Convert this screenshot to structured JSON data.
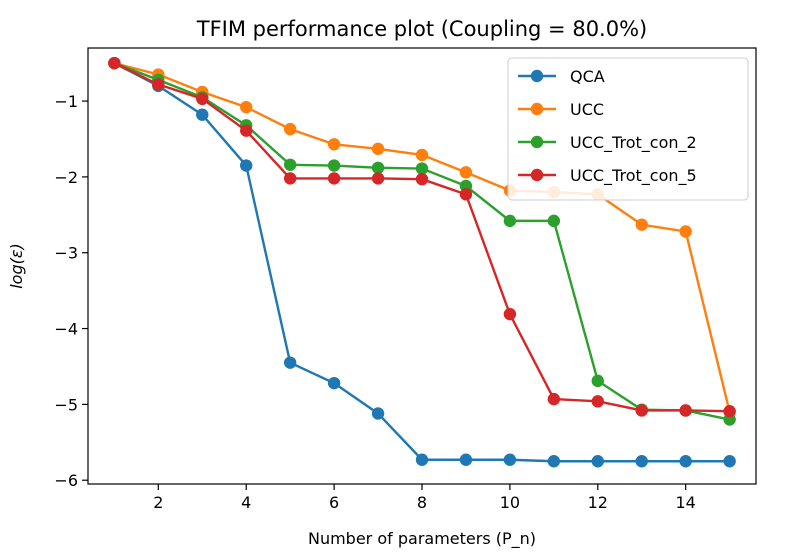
{
  "chart_data": {
    "type": "line",
    "title": "TFIM performance plot (Coupling = 80.0%)",
    "xlabel": "Number of parameters (P_n)",
    "ylabel": "log(ε)",
    "xlim": [
      0.4,
      15.6
    ],
    "ylim": [
      -6.05,
      -0.3
    ],
    "xticks": [
      2,
      4,
      6,
      8,
      10,
      12,
      14
    ],
    "yticks": [
      -1,
      -2,
      -3,
      -4,
      -5,
      -6
    ],
    "grid": false,
    "legend_position": "top-right",
    "x": [
      1,
      2,
      3,
      4,
      5,
      6,
      7,
      8,
      9,
      10,
      11,
      12,
      13,
      14,
      15
    ],
    "series": [
      {
        "name": "QCA",
        "color": "#1f77b4",
        "values": [
          -0.5,
          -0.8,
          -1.18,
          -1.85,
          -4.45,
          -4.72,
          -5.12,
          -5.73,
          -5.73,
          -5.73,
          -5.75,
          -5.75,
          -5.75,
          -5.75,
          -5.75
        ]
      },
      {
        "name": "UCC",
        "color": "#ff7f0e",
        "values": [
          -0.5,
          -0.65,
          -0.88,
          -1.08,
          -1.37,
          -1.57,
          -1.63,
          -1.71,
          -1.94,
          -2.18,
          -2.2,
          -2.23,
          -2.63,
          -2.72,
          -5.1
        ]
      },
      {
        "name": "UCC_Trot_con_2",
        "color": "#2ca02c",
        "values": [
          -0.5,
          -0.72,
          -0.95,
          -1.32,
          -1.84,
          -1.85,
          -1.88,
          -1.89,
          -2.12,
          -2.58,
          -2.58,
          -4.69,
          -5.07,
          -5.08,
          -5.2
        ]
      },
      {
        "name": "UCC_Trot_con_5",
        "color": "#d62728",
        "values": [
          -0.5,
          -0.78,
          -0.97,
          -1.39,
          -2.02,
          -2.02,
          -2.02,
          -2.03,
          -2.23,
          -3.81,
          -4.93,
          -4.96,
          -5.08,
          -5.08,
          -5.09
        ]
      }
    ]
  }
}
